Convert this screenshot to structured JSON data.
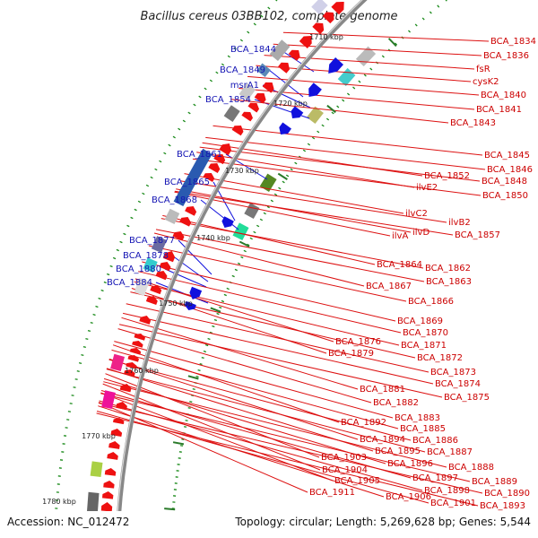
{
  "title": "Bacillus cereus 03BB102, complete genome",
  "footer": {
    "accession": "Accession: NC_012472",
    "summary": "Topology: circular; Length: 5,269,628 bp; Genes: 5,544"
  },
  "kbp_labels": [
    "1710 kbp",
    "1720 kbp",
    "1730 kbp",
    "1740 kbp",
    "1750 kbp",
    "1760 kbp",
    "1770 kbp",
    "1780 kbp"
  ],
  "colors": {
    "forward_gene": "#ee1111",
    "reverse_gene": "#1111dd",
    "leader_forward": "#dd1111",
    "leader_reverse": "#1111dd",
    "backbone": "#888888",
    "tick_dot": "#1a8a1a"
  },
  "left_labels": [
    "BCA_1844",
    "BCA_1849",
    "msrA1",
    "BCA_1854",
    "BCA_1861",
    "BCA_1865",
    "BCA_1868",
    "BCA_1877",
    "BCA_1878",
    "BCA_1880",
    "BCA_1884"
  ],
  "right_labels": [
    "BCA_1834",
    "BCA_1836",
    "fsR",
    "cysK2",
    "BCA_1840",
    "BCA_1841",
    "BCA_1843",
    "BCA_1845",
    "BCA_1846",
    "BCA_1848",
    "BCA_1850",
    "BCA_1852",
    "ilvE2",
    "ilvC2",
    "ilvB2",
    "ilvA",
    "ilvD",
    "BCA_1857",
    "BCA_1862",
    "BCA_1864",
    "BCA_1863",
    "BCA_1867",
    "BCA_1866",
    "BCA_1869",
    "BCA_1870",
    "BCA_1871",
    "BCA_1876",
    "BCA_1879",
    "BCA_1872",
    "BCA_1873",
    "BCA_1874",
    "BCA_1875",
    "BCA_1881",
    "BCA_1882",
    "BCA_1883",
    "BCA_1892",
    "BCA_1885",
    "BCA_1894",
    "BCA_1886",
    "BCA_1895",
    "BCA_1887",
    "BCA_1896",
    "BCA_1888",
    "BCA_1903",
    "BCA_1897",
    "BCA_1889",
    "BCA_1904",
    "BCA_1898",
    "BCA_1890",
    "BCA_1905",
    "BCA_1901",
    "BCA_1893",
    "BCA_1911",
    "BCA_1906"
  ]
}
